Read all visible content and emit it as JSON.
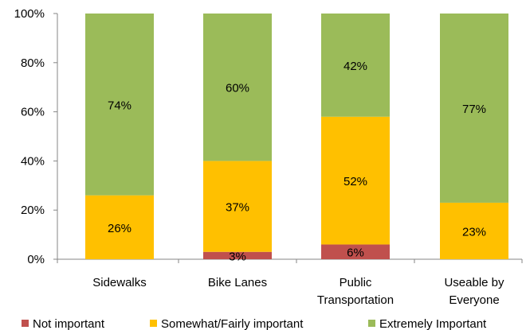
{
  "chart_data": {
    "type": "bar",
    "stacked": true,
    "orientation": "vertical",
    "categories": [
      [
        "Sidewalks"
      ],
      [
        "Bike Lanes"
      ],
      [
        "Public",
        "Transportation"
      ],
      [
        "Useable by",
        "Everyone"
      ]
    ],
    "series": [
      {
        "name": "Not important",
        "color": "#c0504d",
        "values": [
          0,
          3,
          6,
          0
        ],
        "labels": [
          "",
          "3%",
          "6%",
          ""
        ]
      },
      {
        "name": "Somewhat/Fairly important",
        "color": "#ffc000",
        "values": [
          26,
          37,
          52,
          23
        ],
        "labels": [
          "26%",
          "37%",
          "52%",
          "23%"
        ]
      },
      {
        "name": "Extremely Important",
        "color": "#9bbb59",
        "values": [
          74,
          60,
          42,
          77
        ],
        "labels": [
          "74%",
          "60%",
          "42%",
          "77%"
        ]
      }
    ],
    "ylim": [
      0,
      100
    ],
    "yticks": [
      "0%",
      "20%",
      "40%",
      "60%",
      "80%",
      "100%"
    ],
    "legend_position": "bottom",
    "grid": false
  }
}
